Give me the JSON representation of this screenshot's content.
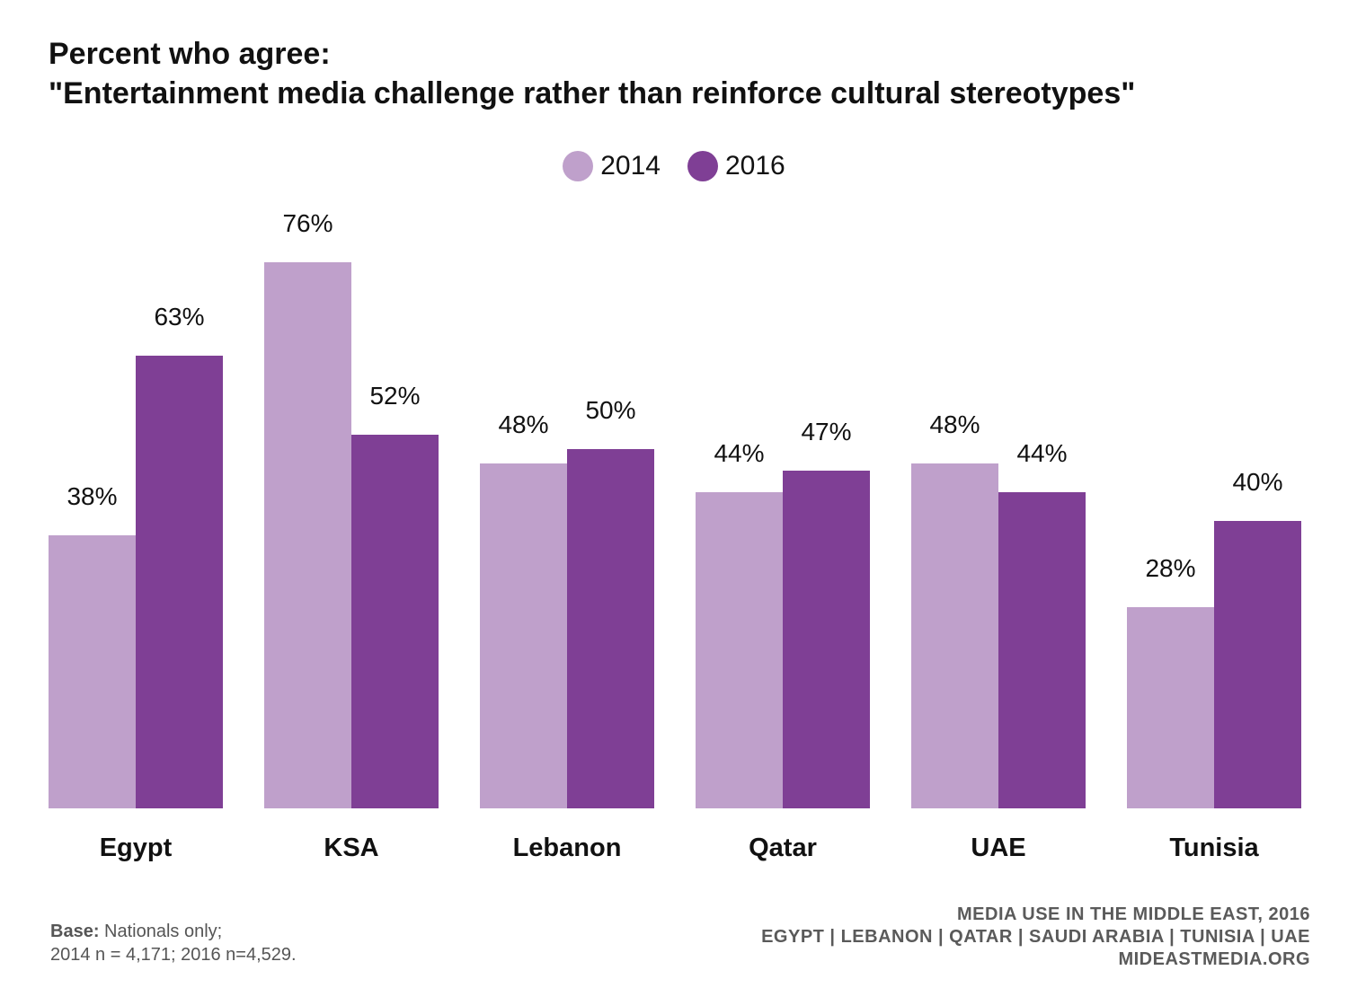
{
  "title": {
    "line1": "Percent who agree:",
    "line2": "\"Entertainment media challenge rather than reinforce cultural stereotypes\""
  },
  "colors": {
    "series_2014": "#bfa0cb",
    "series_2016": "#7f3f95"
  },
  "chart_data": {
    "type": "bar",
    "title": "Percent who agree: \"Entertainment media challenge rather than reinforce cultural stereotypes\"",
    "categories": [
      "Egypt",
      "KSA",
      "Lebanon",
      "Qatar",
      "UAE",
      "Tunisia"
    ],
    "series": [
      {
        "name": "2014",
        "values": [
          38,
          76,
          48,
          44,
          48,
          28
        ],
        "labels": [
          "38%",
          "76%",
          "48%",
          "44%",
          "48%",
          "28%"
        ]
      },
      {
        "name": "2016",
        "values": [
          63,
          52,
          50,
          47,
          44,
          40
        ],
        "labels": [
          "63%",
          "52%",
          "50%",
          "47%",
          "44%",
          "40%"
        ]
      }
    ],
    "ylim": [
      0,
      100
    ],
    "grid": false,
    "legend": "top-center"
  },
  "footer": {
    "base_label": "Base:",
    "base_text": "Nationals only;",
    "sample_text": "2014 n = 4,171; 2016 n=4,529.",
    "source_line1": "MEDIA USE IN THE MIDDLE EAST, 2016",
    "source_line2": "EGYPT | LEBANON | QATAR | SAUDI ARABIA | TUNISIA | UAE",
    "source_line3": "MIDEASTMEDIA.ORG"
  }
}
